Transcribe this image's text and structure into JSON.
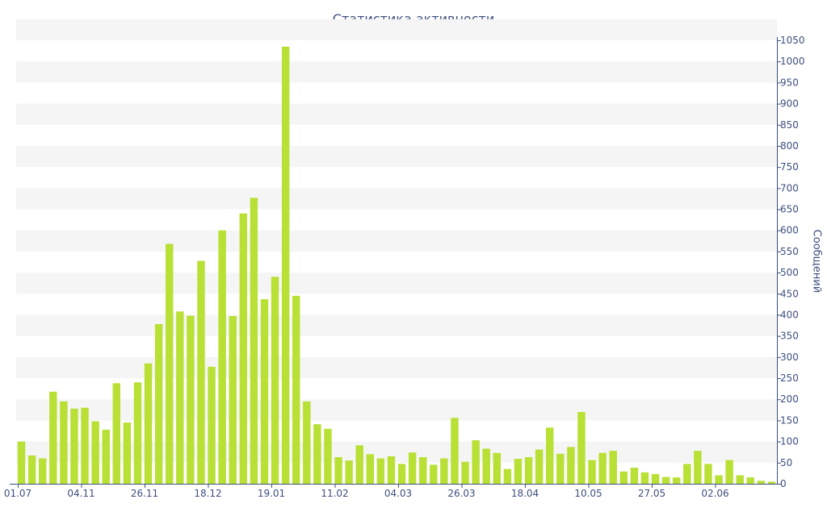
{
  "chart_data": {
    "type": "bar",
    "title": "Статистика активности",
    "xlabel": "",
    "ylabel": "Сообщений",
    "ylim": [
      0,
      1050
    ],
    "y_ticks": [
      0,
      50,
      100,
      150,
      200,
      250,
      300,
      350,
      400,
      450,
      500,
      550,
      600,
      650,
      700,
      750,
      800,
      850,
      900,
      950,
      1000,
      1050
    ],
    "x_tick_labels": [
      "01.07",
      "04.11",
      "26.11",
      "18.12",
      "19.01",
      "11.02",
      "04.03",
      "26.03",
      "18.04",
      "10.05",
      "27.05",
      "02.06"
    ],
    "x_tick_bar_index": [
      0,
      6,
      12,
      18,
      24,
      30,
      36,
      42,
      48,
      54,
      60,
      66
    ],
    "values": [
      100,
      67,
      60,
      218,
      195,
      178,
      180,
      148,
      128,
      238,
      145,
      240,
      285,
      378,
      568,
      408,
      398,
      528,
      277,
      600,
      397,
      640,
      677,
      437,
      490,
      1035,
      445,
      195,
      141,
      130,
      63,
      55,
      91,
      70,
      60,
      65,
      47,
      74,
      63,
      45,
      60,
      156,
      52,
      103,
      83,
      73,
      35,
      59,
      63,
      81,
      133,
      71,
      87,
      170,
      56,
      73,
      78,
      29,
      38,
      27,
      23,
      16,
      15,
      47,
      78,
      47,
      20,
      56,
      20,
      15,
      7,
      5
    ],
    "bar_color": "#b8e035",
    "band_color": "#f5f5f5",
    "axis_color": "#3d4f7e",
    "y_axis_side": "right",
    "grid": "alternating bands"
  }
}
